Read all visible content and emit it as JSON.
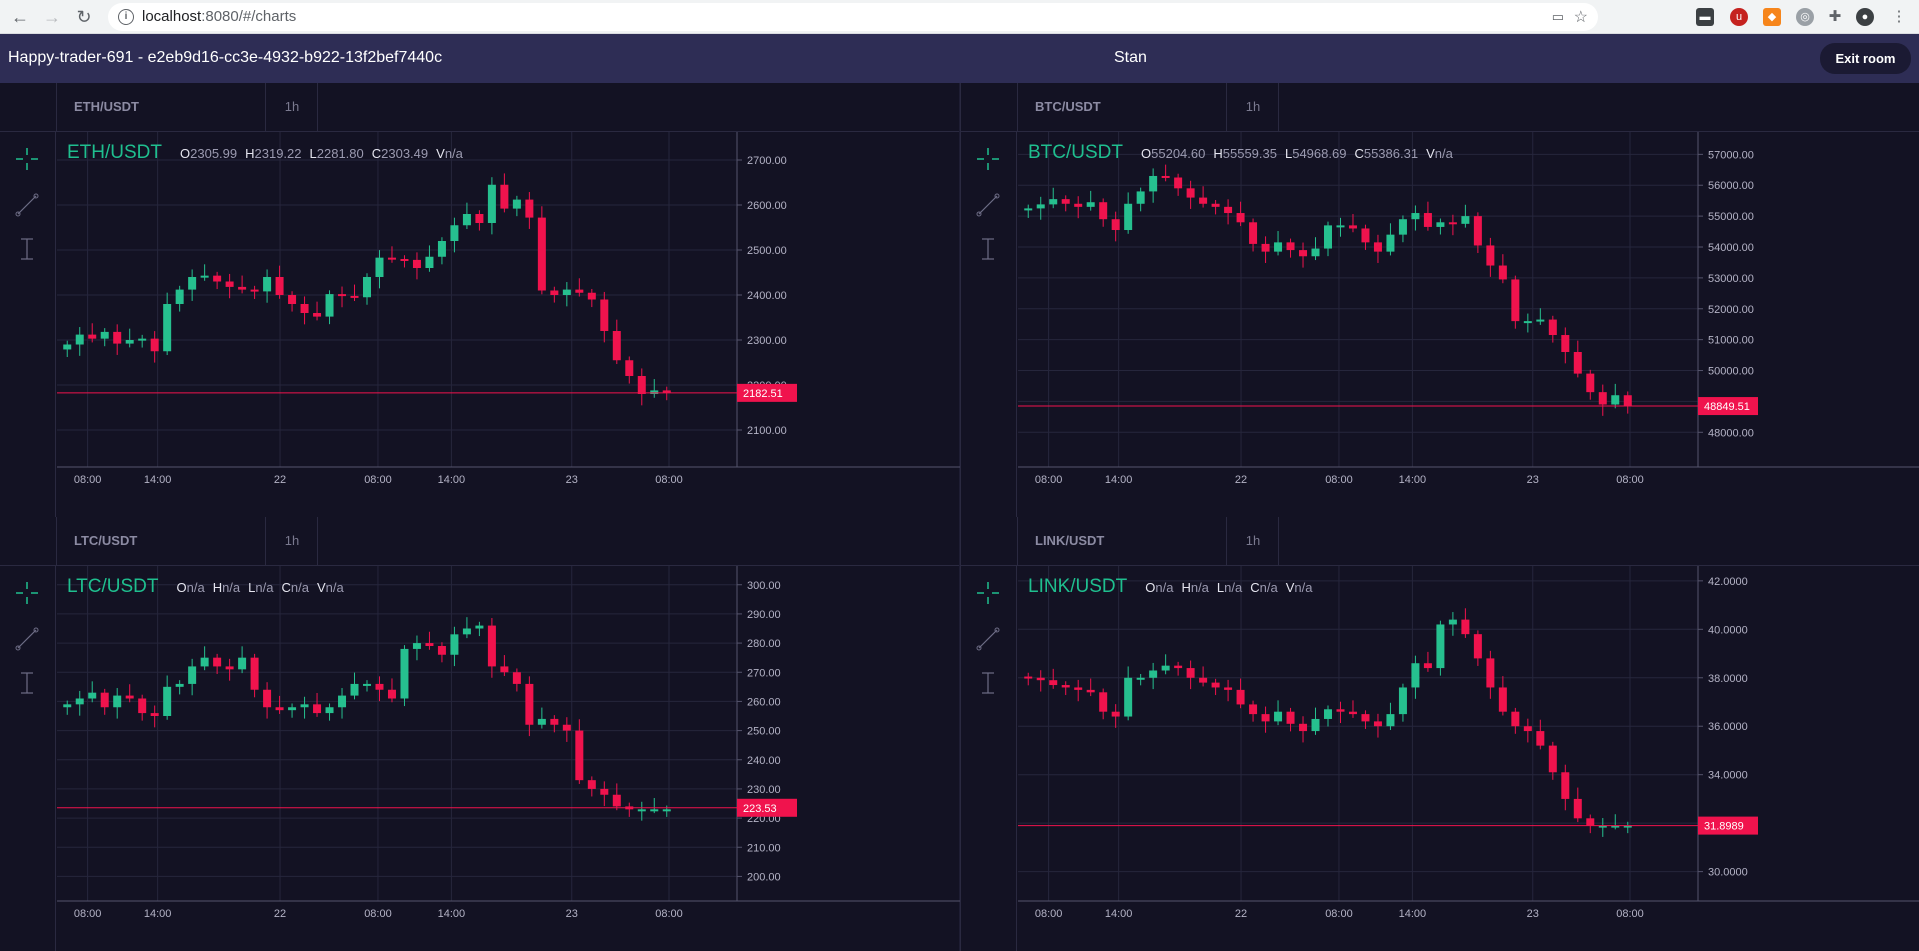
{
  "browser": {
    "url_host": "localhost",
    "url_rest": ":8080/#/charts"
  },
  "header": {
    "room_title": "Happy-trader-691 - e2eb9d16-cc3e-4932-b922-13f2bef7440c",
    "user_name": "Stan",
    "exit_label": "Exit room"
  },
  "colors": {
    "up": "#26c08f",
    "down": "#f0134d",
    "grid": "#26263c",
    "text": "#9b9ab0"
  },
  "time_labels": [
    "08:00",
    "14:00",
    "22",
    "08:00",
    "14:00",
    "23",
    "08:00"
  ],
  "charts": [
    {
      "symbol": "ETH/USDT",
      "timeframe": "1h",
      "legend": {
        "O": "2305.99",
        "H": "2319.22",
        "L": "2281.80",
        "C": "2303.49",
        "V": "n/a"
      },
      "price_label": "2182.51",
      "last_price": 2182.51,
      "ylim": [
        2040,
        2740
      ],
      "y_ticks": [
        {
          "v": 2700,
          "label": "2700.00"
        },
        {
          "v": 2600,
          "label": "2600.00"
        },
        {
          "v": 2500,
          "label": "2500.00"
        },
        {
          "v": 2400,
          "label": "2400.00"
        },
        {
          "v": 2300,
          "label": "2300.00"
        },
        {
          "v": 2200,
          "label": "2200.00"
        },
        {
          "v": 2100,
          "label": "2100.00"
        }
      ],
      "closes": [
        2290,
        2312,
        2303,
        2318,
        2292,
        2300,
        2303,
        2275,
        2380,
        2412,
        2440,
        2443,
        2430,
        2418,
        2412,
        2408,
        2440,
        2400,
        2380,
        2360,
        2352,
        2402,
        2398,
        2395,
        2440,
        2483,
        2480,
        2478,
        2460,
        2485,
        2520,
        2555,
        2580,
        2560,
        2645,
        2592,
        2612,
        2572,
        2410,
        2400,
        2412,
        2405,
        2390,
        2320,
        2255,
        2220,
        2180,
        2188,
        2183
      ]
    },
    {
      "symbol": "BTC/USDT",
      "timeframe": "1h",
      "legend": {
        "O": "55204.60",
        "H": "55559.35",
        "L": "54968.69",
        "C": "55386.31",
        "V": "n/a"
      },
      "price_label": "48849.51",
      "last_price": 48849.51,
      "ylim": [
        47200,
        57400
      ],
      "y_ticks": [
        {
          "v": 57000,
          "label": "57000.00"
        },
        {
          "v": 56000,
          "label": "56000.00"
        },
        {
          "v": 55000,
          "label": "55000.00"
        },
        {
          "v": 54000,
          "label": "54000.00"
        },
        {
          "v": 53000,
          "label": "53000.00"
        },
        {
          "v": 52000,
          "label": "52000.00"
        },
        {
          "v": 51000,
          "label": "51000.00"
        },
        {
          "v": 50000,
          "label": "50000.00"
        },
        {
          "v": 49000,
          "label": "49000.00"
        },
        {
          "v": 48000,
          "label": "48000.00"
        }
      ],
      "closes": [
        55250,
        55380,
        55550,
        55400,
        55300,
        55450,
        54900,
        54550,
        55400,
        55800,
        56300,
        56250,
        55900,
        55600,
        55400,
        55300,
        55100,
        54800,
        54100,
        53850,
        54150,
        53900,
        53700,
        53950,
        54700,
        54700,
        54600,
        54150,
        53850,
        54400,
        54900,
        55100,
        54650,
        54800,
        54750,
        55000,
        54050,
        53400,
        52950,
        51600,
        51600,
        51650,
        51150,
        50600,
        49900,
        49300,
        48900,
        49200,
        48850
      ]
    },
    {
      "symbol": "LTC/USDT",
      "timeframe": "1h",
      "legend": {
        "O": "n/a",
        "H": "n/a",
        "L": "n/a",
        "C": "n/a",
        "V": "n/a"
      },
      "price_label": "223.53",
      "last_price": 223.53,
      "ylim": [
        195,
        303
      ],
      "y_ticks": [
        {
          "v": 300,
          "label": "300.00"
        },
        {
          "v": 290,
          "label": "290.00"
        },
        {
          "v": 280,
          "label": "280.00"
        },
        {
          "v": 270,
          "label": "270.00"
        },
        {
          "v": 260,
          "label": "260.00"
        },
        {
          "v": 250,
          "label": "250.00"
        },
        {
          "v": 240,
          "label": "240.00"
        },
        {
          "v": 230,
          "label": "230.00"
        },
        {
          "v": 220,
          "label": "220.00"
        },
        {
          "v": 210,
          "label": "210.00"
        },
        {
          "v": 200,
          "label": "200.00"
        }
      ],
      "closes": [
        259,
        261,
        263,
        258,
        262,
        261,
        256,
        255,
        265,
        266,
        272,
        275,
        272,
        271,
        275,
        264,
        258,
        257,
        258,
        259,
        256,
        258,
        262,
        266,
        266,
        264,
        261,
        278,
        280,
        279,
        276,
        283,
        285,
        286,
        272,
        270,
        266,
        252,
        254,
        252,
        250,
        233,
        230,
        228,
        224,
        223,
        223,
        223,
        223
      ]
    },
    {
      "symbol": "LINK/USDT",
      "timeframe": "1h",
      "legend": {
        "O": "n/a",
        "H": "n/a",
        "L": "n/a",
        "C": "n/a",
        "V": "n/a"
      },
      "price_label": "31.8989",
      "last_price": 31.8989,
      "ylim": [
        29.2,
        42.2
      ],
      "y_ticks": [
        {
          "v": 42,
          "label": "42.0000"
        },
        {
          "v": 40,
          "label": "40.0000"
        },
        {
          "v": 38,
          "label": "38.0000"
        },
        {
          "v": 36,
          "label": "36.0000"
        },
        {
          "v": 34,
          "label": "34.0000"
        },
        {
          "v": 32,
          "label": "32.0000"
        },
        {
          "v": 30,
          "label": "30.0000"
        }
      ],
      "closes": [
        38.0,
        37.9,
        37.7,
        37.6,
        37.5,
        37.4,
        36.6,
        36.4,
        38.0,
        38.0,
        38.3,
        38.5,
        38.4,
        38.0,
        37.8,
        37.6,
        37.5,
        36.9,
        36.5,
        36.2,
        36.6,
        36.1,
        35.8,
        36.3,
        36.7,
        36.6,
        36.5,
        36.2,
        36.0,
        36.5,
        37.6,
        38.6,
        38.4,
        40.2,
        40.4,
        39.8,
        38.8,
        37.6,
        36.6,
        36.0,
        35.8,
        35.2,
        34.1,
        33.0,
        32.2,
        31.9,
        31.9,
        31.9,
        31.9
      ]
    }
  ]
}
